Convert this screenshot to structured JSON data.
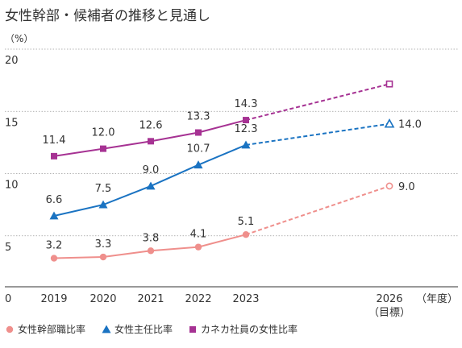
{
  "chart_data": {
    "type": "line",
    "title": "女性幹部・候補者の推移と見通し",
    "y_unit": "（%）",
    "x_unit": "（年度）",
    "ylim": [
      0,
      20
    ],
    "y_ticks": [
      "0",
      "5",
      "10",
      "15",
      "20"
    ],
    "grid": true,
    "x": [
      "2019",
      "2020",
      "2021",
      "2022",
      "2023",
      "2026"
    ],
    "x_sublabels": {
      "2026": "（目標）"
    },
    "legend_position": "bottom-left",
    "series": [
      {
        "name": "女性幹部職比率",
        "marker": "circle",
        "color": "#ef8f8c",
        "values": [
          3.2,
          3.3,
          3.8,
          4.1,
          5.1,
          9.0
        ],
        "labels": [
          "3.2",
          "3.3",
          "3.8",
          "4.1",
          "5.1",
          "9.0"
        ],
        "target_index": 5
      },
      {
        "name": "女性主任比率",
        "marker": "triangle",
        "color": "#1a73c2",
        "values": [
          6.6,
          7.5,
          9.0,
          10.7,
          12.3,
          14.0
        ],
        "labels": [
          "6.6",
          "7.5",
          "9.0",
          "10.7",
          "12.3",
          "14.0"
        ],
        "target_index": 5
      },
      {
        "name": "カネカ社員の女性比率",
        "marker": "square",
        "color": "#a63293",
        "values": [
          11.4,
          12.0,
          12.6,
          13.3,
          14.3,
          17.2
        ],
        "labels": [
          "11.4",
          "12.0",
          "12.6",
          "13.3",
          "14.3",
          ""
        ],
        "target_index": 5
      }
    ]
  }
}
